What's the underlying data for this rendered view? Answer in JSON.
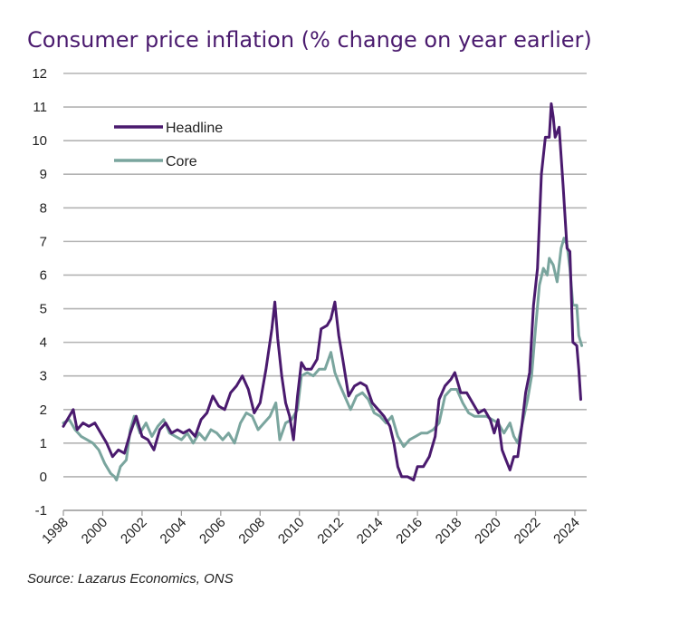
{
  "title": "Consumer price inflation (% change on year earlier)",
  "source": "Source: Lazarus Economics, ONS",
  "chart_data": {
    "type": "line",
    "title": "Consumer price inflation (% change on year earlier)",
    "xlabel": "",
    "ylabel": "",
    "xlim": [
      1998,
      2024.6
    ],
    "ylim": [
      -1,
      12
    ],
    "yticks": [
      "-1",
      "0",
      "1",
      "2",
      "3",
      "4",
      "5",
      "6",
      "7",
      "8",
      "9",
      "10",
      "11",
      "12"
    ],
    "xticks": [
      "1998",
      "2000",
      "2002",
      "2004",
      "2006",
      "2008",
      "2010",
      "2012",
      "2014",
      "2016",
      "2018",
      "2020",
      "2022",
      "2024"
    ],
    "grid": "horizontal",
    "legend_position": "top-left",
    "series": [
      {
        "name": "Headline",
        "color": "#4a1a6e",
        "points": [
          [
            1998.0,
            1.5
          ],
          [
            1998.3,
            1.8
          ],
          [
            1998.5,
            2.0
          ],
          [
            1998.7,
            1.4
          ],
          [
            1999.0,
            1.6
          ],
          [
            1999.3,
            1.5
          ],
          [
            1999.6,
            1.6
          ],
          [
            1999.9,
            1.3
          ],
          [
            2000.2,
            1.0
          ],
          [
            2000.5,
            0.6
          ],
          [
            2000.8,
            0.8
          ],
          [
            2001.1,
            0.7
          ],
          [
            2001.4,
            1.3
          ],
          [
            2001.7,
            1.8
          ],
          [
            2002.0,
            1.2
          ],
          [
            2002.3,
            1.1
          ],
          [
            2002.6,
            0.8
          ],
          [
            2002.9,
            1.4
          ],
          [
            2003.2,
            1.6
          ],
          [
            2003.5,
            1.3
          ],
          [
            2003.8,
            1.4
          ],
          [
            2004.1,
            1.3
          ],
          [
            2004.4,
            1.4
          ],
          [
            2004.7,
            1.2
          ],
          [
            2005.0,
            1.7
          ],
          [
            2005.3,
            1.9
          ],
          [
            2005.6,
            2.4
          ],
          [
            2005.9,
            2.1
          ],
          [
            2006.2,
            2.0
          ],
          [
            2006.5,
            2.5
          ],
          [
            2006.8,
            2.7
          ],
          [
            2007.1,
            3.0
          ],
          [
            2007.4,
            2.6
          ],
          [
            2007.7,
            1.9
          ],
          [
            2008.0,
            2.2
          ],
          [
            2008.3,
            3.2
          ],
          [
            2008.6,
            4.4
          ],
          [
            2008.75,
            5.2
          ],
          [
            2008.9,
            4.1
          ],
          [
            2009.1,
            3.0
          ],
          [
            2009.3,
            2.2
          ],
          [
            2009.5,
            1.8
          ],
          [
            2009.7,
            1.1
          ],
          [
            2009.9,
            2.4
          ],
          [
            2010.1,
            3.4
          ],
          [
            2010.3,
            3.2
          ],
          [
            2010.6,
            3.2
          ],
          [
            2010.9,
            3.5
          ],
          [
            2011.1,
            4.4
          ],
          [
            2011.4,
            4.5
          ],
          [
            2011.6,
            4.7
          ],
          [
            2011.8,
            5.2
          ],
          [
            2012.0,
            4.2
          ],
          [
            2012.2,
            3.5
          ],
          [
            2012.5,
            2.4
          ],
          [
            2012.8,
            2.7
          ],
          [
            2013.1,
            2.8
          ],
          [
            2013.4,
            2.7
          ],
          [
            2013.7,
            2.2
          ],
          [
            2014.0,
            2.0
          ],
          [
            2014.3,
            1.8
          ],
          [
            2014.6,
            1.5
          ],
          [
            2014.8,
            1.0
          ],
          [
            2015.0,
            0.3
          ],
          [
            2015.2,
            0.0
          ],
          [
            2015.5,
            0.0
          ],
          [
            2015.8,
            -0.1
          ],
          [
            2016.0,
            0.3
          ],
          [
            2016.3,
            0.3
          ],
          [
            2016.6,
            0.6
          ],
          [
            2016.9,
            1.2
          ],
          [
            2017.1,
            2.3
          ],
          [
            2017.4,
            2.7
          ],
          [
            2017.7,
            2.9
          ],
          [
            2017.9,
            3.1
          ],
          [
            2018.2,
            2.5
          ],
          [
            2018.5,
            2.5
          ],
          [
            2018.8,
            2.2
          ],
          [
            2019.1,
            1.9
          ],
          [
            2019.4,
            2.0
          ],
          [
            2019.7,
            1.7
          ],
          [
            2019.9,
            1.3
          ],
          [
            2020.1,
            1.7
          ],
          [
            2020.3,
            0.8
          ],
          [
            2020.5,
            0.5
          ],
          [
            2020.7,
            0.2
          ],
          [
            2020.9,
            0.6
          ],
          [
            2021.1,
            0.6
          ],
          [
            2021.3,
            1.5
          ],
          [
            2021.5,
            2.5
          ],
          [
            2021.7,
            3.1
          ],
          [
            2021.9,
            5.1
          ],
          [
            2022.1,
            6.2
          ],
          [
            2022.3,
            9.0
          ],
          [
            2022.5,
            10.1
          ],
          [
            2022.7,
            10.1
          ],
          [
            2022.8,
            11.1
          ],
          [
            2022.9,
            10.7
          ],
          [
            2023.0,
            10.1
          ],
          [
            2023.2,
            10.4
          ],
          [
            2023.4,
            8.7
          ],
          [
            2023.6,
            6.8
          ],
          [
            2023.75,
            6.7
          ],
          [
            2023.9,
            4.0
          ],
          [
            2024.1,
            3.9
          ],
          [
            2024.2,
            3.2
          ],
          [
            2024.3,
            2.3
          ]
        ]
      },
      {
        "name": "Core",
        "color": "#7aa59e",
        "points": [
          [
            1998.0,
            1.6
          ],
          [
            1998.3,
            1.7
          ],
          [
            1998.6,
            1.4
          ],
          [
            1998.9,
            1.2
          ],
          [
            1999.2,
            1.1
          ],
          [
            1999.5,
            1.0
          ],
          [
            1999.8,
            0.8
          ],
          [
            2000.1,
            0.4
          ],
          [
            2000.4,
            0.1
          ],
          [
            2000.6,
            0.0
          ],
          [
            2000.7,
            -0.1
          ],
          [
            2000.9,
            0.3
          ],
          [
            2001.2,
            0.5
          ],
          [
            2001.4,
            1.4
          ],
          [
            2001.6,
            1.8
          ],
          [
            2001.9,
            1.3
          ],
          [
            2002.2,
            1.6
          ],
          [
            2002.5,
            1.2
          ],
          [
            2002.8,
            1.5
          ],
          [
            2003.1,
            1.7
          ],
          [
            2003.4,
            1.3
          ],
          [
            2003.7,
            1.2
          ],
          [
            2004.0,
            1.1
          ],
          [
            2004.3,
            1.3
          ],
          [
            2004.6,
            1.0
          ],
          [
            2004.9,
            1.3
          ],
          [
            2005.2,
            1.1
          ],
          [
            2005.5,
            1.4
          ],
          [
            2005.8,
            1.3
          ],
          [
            2006.1,
            1.1
          ],
          [
            2006.4,
            1.3
          ],
          [
            2006.7,
            1.0
          ],
          [
            2007.0,
            1.6
          ],
          [
            2007.3,
            1.9
          ],
          [
            2007.6,
            1.8
          ],
          [
            2007.9,
            1.4
          ],
          [
            2008.2,
            1.6
          ],
          [
            2008.5,
            1.8
          ],
          [
            2008.8,
            2.2
          ],
          [
            2009.0,
            1.1
          ],
          [
            2009.3,
            1.6
          ],
          [
            2009.6,
            1.7
          ],
          [
            2009.9,
            2.0
          ],
          [
            2010.1,
            3.0
          ],
          [
            2010.4,
            3.1
          ],
          [
            2010.7,
            3.0
          ],
          [
            2011.0,
            3.2
          ],
          [
            2011.3,
            3.2
          ],
          [
            2011.6,
            3.7
          ],
          [
            2011.8,
            3.1
          ],
          [
            2012.0,
            2.8
          ],
          [
            2012.3,
            2.4
          ],
          [
            2012.6,
            2.0
          ],
          [
            2012.9,
            2.4
          ],
          [
            2013.2,
            2.5
          ],
          [
            2013.5,
            2.3
          ],
          [
            2013.8,
            1.9
          ],
          [
            2014.1,
            1.8
          ],
          [
            2014.4,
            1.6
          ],
          [
            2014.7,
            1.8
          ],
          [
            2015.0,
            1.2
          ],
          [
            2015.3,
            0.9
          ],
          [
            2015.6,
            1.1
          ],
          [
            2015.9,
            1.2
          ],
          [
            2016.2,
            1.3
          ],
          [
            2016.5,
            1.3
          ],
          [
            2016.8,
            1.4
          ],
          [
            2017.1,
            1.6
          ],
          [
            2017.4,
            2.4
          ],
          [
            2017.7,
            2.6
          ],
          [
            2018.0,
            2.6
          ],
          [
            2018.3,
            2.2
          ],
          [
            2018.6,
            1.9
          ],
          [
            2018.9,
            1.8
          ],
          [
            2019.2,
            1.8
          ],
          [
            2019.5,
            1.8
          ],
          [
            2019.8,
            1.7
          ],
          [
            2020.1,
            1.6
          ],
          [
            2020.4,
            1.3
          ],
          [
            2020.7,
            1.6
          ],
          [
            2020.9,
            1.2
          ],
          [
            2021.1,
            1.0
          ],
          [
            2021.3,
            1.5
          ],
          [
            2021.6,
            2.3
          ],
          [
            2021.8,
            3.0
          ],
          [
            2022.0,
            4.4
          ],
          [
            2022.2,
            5.7
          ],
          [
            2022.4,
            6.2
          ],
          [
            2022.6,
            6.0
          ],
          [
            2022.7,
            6.5
          ],
          [
            2022.9,
            6.3
          ],
          [
            2023.1,
            5.8
          ],
          [
            2023.3,
            6.8
          ],
          [
            2023.45,
            7.1
          ],
          [
            2023.6,
            6.9
          ],
          [
            2023.75,
            6.2
          ],
          [
            2023.9,
            5.1
          ],
          [
            2024.1,
            5.1
          ],
          [
            2024.2,
            4.2
          ],
          [
            2024.35,
            3.9
          ]
        ]
      }
    ]
  }
}
